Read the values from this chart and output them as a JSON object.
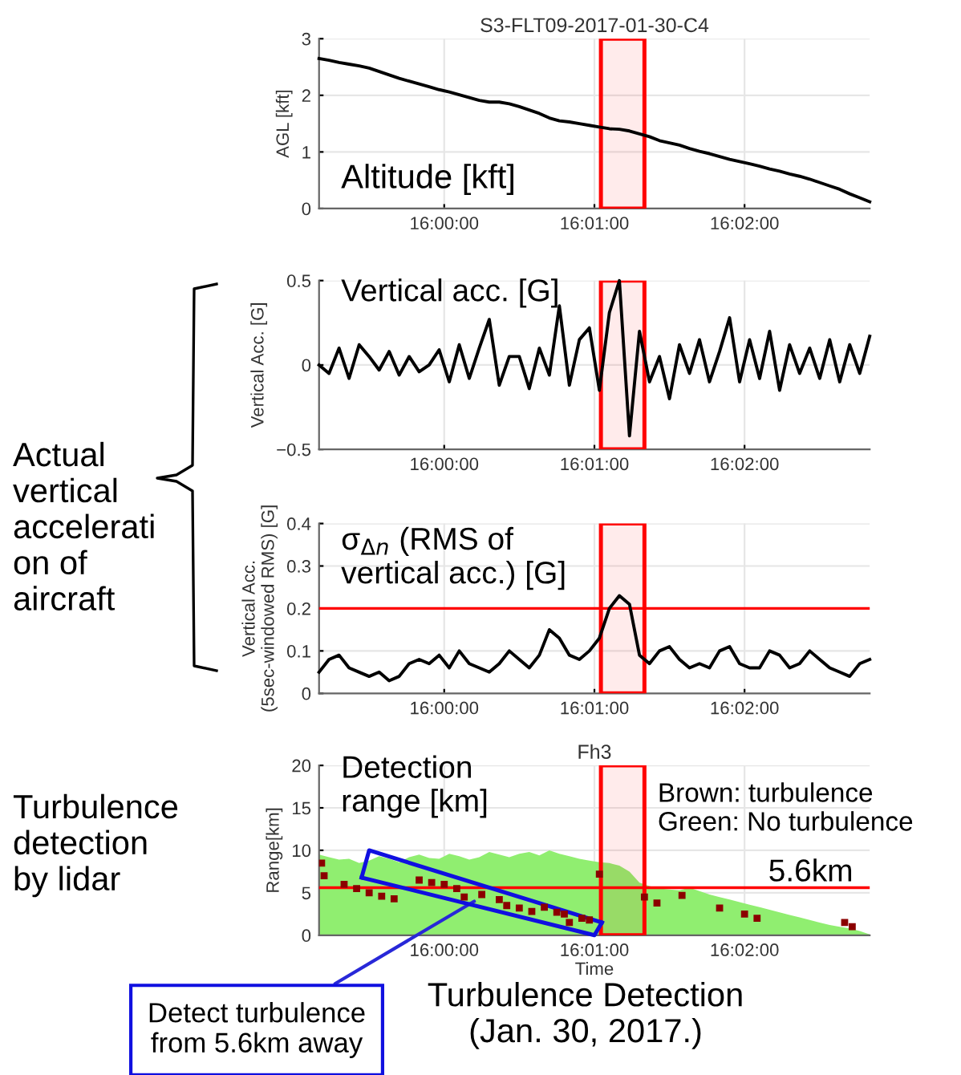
{
  "chart_data": [
    {
      "type": "line",
      "title": "S3-FLT09-2017-01-30-C4",
      "ylabel": "AGL [kft]",
      "annotations": [
        "Altitude [kft]"
      ],
      "x": [
        15.98611,
        15.98722,
        15.98833,
        15.98944,
        15.99056,
        15.99167,
        15.99278,
        15.99389,
        15.995,
        15.99611,
        15.99722,
        15.99833,
        15.99944,
        16.00056,
        16.00167,
        16.00278,
        16.00389,
        16.005,
        16.00611,
        16.00722,
        16.00833,
        16.00944,
        16.01056,
        16.01167,
        16.01278,
        16.01389,
        16.015,
        16.01611,
        16.01722,
        16.01833,
        16.01944,
        16.02056,
        16.02167,
        16.02278,
        16.02389,
        16.025,
        16.02611,
        16.02722,
        16.02833,
        16.02944,
        16.03056,
        16.03167,
        16.03278,
        16.03389,
        16.035,
        16.03611,
        16.03722,
        16.03833,
        16.03944,
        16.04056,
        16.04167,
        16.04278,
        16.04389,
        16.045,
        16.04611,
        16.04722
      ],
      "series": [
        {
          "color": "#000000",
          "values": [
            2.65,
            2.62,
            2.58,
            2.55,
            2.52,
            2.48,
            2.42,
            2.36,
            2.3,
            2.25,
            2.2,
            2.15,
            2.1,
            2.06,
            2.01,
            1.96,
            1.91,
            1.88,
            1.88,
            1.85,
            1.8,
            1.74,
            1.68,
            1.6,
            1.55,
            1.53,
            1.5,
            1.47,
            1.44,
            1.41,
            1.4,
            1.37,
            1.32,
            1.27,
            1.2,
            1.16,
            1.12,
            1.06,
            1.01,
            0.97,
            0.92,
            0.87,
            0.83,
            0.79,
            0.75,
            0.7,
            0.66,
            0.61,
            0.57,
            0.52,
            0.46,
            0.4,
            0.34,
            0.26,
            0.19,
            0.12
          ]
        }
      ],
      "xlim": [
        15.98611,
        16.04722
      ],
      "xticks": [
        {
          "value": 16,
          "label": "16:00:00"
        },
        {
          "value": 16.01667,
          "label": "16:01:00"
        },
        {
          "value": 16.03333,
          "label": "16:02:00"
        }
      ],
      "ylim": [
        0,
        3
      ],
      "yticks": [
        0,
        1,
        2,
        3
      ],
      "grid": true,
      "marker": "none",
      "line_style": "solid",
      "bands": [
        {
          "axis": "x",
          "from": 16.01739,
          "to": 16.02222,
          "color": "#ff0000"
        }
      ]
    },
    {
      "type": "line",
      "ylabel": "Vertical Acc. [G]",
      "annotations": [
        "Vertical acc. [G]"
      ],
      "x": [
        15.98611,
        15.98722,
        15.98833,
        15.98944,
        15.99056,
        15.99167,
        15.99278,
        15.99389,
        15.995,
        15.99611,
        15.99722,
        15.99833,
        15.99944,
        16.00056,
        16.00167,
        16.00278,
        16.00389,
        16.005,
        16.00611,
        16.00722,
        16.00833,
        16.00944,
        16.01056,
        16.01167,
        16.01278,
        16.01389,
        16.015,
        16.01611,
        16.01722,
        16.01833,
        16.01944,
        16.02056,
        16.02167,
        16.02278,
        16.02389,
        16.025,
        16.02611,
        16.02722,
        16.02833,
        16.02944,
        16.03056,
        16.03167,
        16.03278,
        16.03389,
        16.035,
        16.03611,
        16.03722,
        16.03833,
        16.03944,
        16.04056,
        16.04167,
        16.04278,
        16.04389,
        16.045,
        16.04611,
        16.04722
      ],
      "series": [
        {
          "color": "#000000",
          "values": [
            0.0,
            -0.05,
            0.1,
            -0.08,
            0.12,
            0.05,
            -0.03,
            0.08,
            -0.06,
            0.05,
            -0.04,
            0.0,
            0.09,
            -0.1,
            0.12,
            -0.08,
            0.1,
            0.27,
            -0.12,
            0.05,
            0.05,
            -0.14,
            0.1,
            -0.06,
            0.35,
            -0.12,
            0.15,
            0.22,
            -0.15,
            0.31,
            0.5,
            -0.42,
            0.2,
            -0.1,
            0.05,
            -0.2,
            0.12,
            -0.05,
            0.15,
            -0.1,
            0.08,
            0.28,
            -0.1,
            0.15,
            -0.08,
            0.2,
            -0.15,
            0.12,
            -0.05,
            0.1,
            -0.08,
            0.15,
            -0.1,
            0.12,
            -0.05,
            0.17
          ]
        }
      ],
      "xlim": [
        15.98611,
        16.04722
      ],
      "xticks": [
        {
          "value": 16,
          "label": "16:00:00"
        },
        {
          "value": 16.01667,
          "label": "16:01:00"
        },
        {
          "value": 16.03333,
          "label": "16:02:00"
        }
      ],
      "ylim": [
        -0.5,
        0.5
      ],
      "yticks": [
        {
          "value": -0.5,
          "label": "−0.5"
        },
        0,
        0.5
      ],
      "grid": true,
      "marker": "none",
      "line_style": "solid",
      "bands": [
        {
          "axis": "x",
          "from": 16.01739,
          "to": 16.02222,
          "color": "#ff0000"
        }
      ]
    },
    {
      "type": "line",
      "ylabel": "Vertical Acc.\n(5sec-windowed RMS) [G]",
      "annotations": [
        "σ$_{Δn}$ (RMS of\nvertical acc.) [G]",
        "Actual\nvertical\naccelerati\non of\naircraft"
      ],
      "x": [
        15.98611,
        15.98722,
        15.98833,
        15.98944,
        15.99056,
        15.99167,
        15.99278,
        15.99389,
        15.995,
        15.99611,
        15.99722,
        15.99833,
        15.99944,
        16.00056,
        16.00167,
        16.00278,
        16.00389,
        16.005,
        16.00611,
        16.00722,
        16.00833,
        16.00944,
        16.01056,
        16.01167,
        16.01278,
        16.01389,
        16.015,
        16.01611,
        16.01722,
        16.01833,
        16.01944,
        16.02056,
        16.02167,
        16.02278,
        16.02389,
        16.025,
        16.02611,
        16.02722,
        16.02833,
        16.02944,
        16.03056,
        16.03167,
        16.03278,
        16.03389,
        16.035,
        16.03611,
        16.03722,
        16.03833,
        16.03944,
        16.04056,
        16.04167,
        16.04278,
        16.04389,
        16.045,
        16.04611,
        16.04722
      ],
      "series": [
        {
          "color": "#000000",
          "values": [
            0.05,
            0.08,
            0.09,
            0.06,
            0.05,
            0.04,
            0.05,
            0.03,
            0.04,
            0.07,
            0.08,
            0.07,
            0.09,
            0.06,
            0.1,
            0.07,
            0.06,
            0.05,
            0.07,
            0.1,
            0.08,
            0.06,
            0.09,
            0.15,
            0.13,
            0.09,
            0.08,
            0.1,
            0.13,
            0.2,
            0.23,
            0.21,
            0.09,
            0.07,
            0.1,
            0.11,
            0.08,
            0.06,
            0.07,
            0.06,
            0.1,
            0.11,
            0.07,
            0.06,
            0.06,
            0.1,
            0.09,
            0.06,
            0.07,
            0.1,
            0.08,
            0.06,
            0.05,
            0.04,
            0.07,
            0.08
          ]
        }
      ],
      "xlim": [
        15.98611,
        16.04722
      ],
      "xticks": [
        {
          "value": 16,
          "label": "16:00:00"
        },
        {
          "value": 16.01667,
          "label": "16:01:00"
        },
        {
          "value": 16.03333,
          "label": "16:02:00"
        }
      ],
      "ylim": [
        0,
        0.4
      ],
      "yticks": [
        0,
        0.1,
        0.2,
        0.3,
        0.4
      ],
      "grid": true,
      "marker": "none",
      "line_style": "solid",
      "ref_lines": [
        {
          "axis": "y",
          "value": 0.2,
          "color": "#ff0000"
        }
      ],
      "bands": [
        {
          "axis": "x",
          "from": 16.01739,
          "to": 16.02222,
          "color": "#ff0000"
        }
      ]
    },
    {
      "type": "area",
      "title": "Fh3",
      "xlabel": "Time",
      "ylabel": "Range[km]",
      "annotations": [
        "Detection\nrange [km]",
        "Brown: turbulence\nGreen: No turbulence",
        "Turbulence\ndetection\nby lidar",
        {
          "text": "Detect turbulence\nfrom 5.6km away",
          "x": 16.00333,
          "y": 4
        },
        "Turbulence Detection\n(Jan. 30, 2017.)"
      ],
      "x": [
        15.98611,
        15.98722,
        15.98833,
        15.98944,
        15.99056,
        15.99167,
        15.99278,
        15.99389,
        15.995,
        15.99611,
        15.99722,
        15.99833,
        15.99944,
        16.00056,
        16.00167,
        16.00278,
        16.00389,
        16.005,
        16.00611,
        16.00722,
        16.00833,
        16.00944,
        16.01056,
        16.01167,
        16.01278,
        16.01389,
        16.015,
        16.01611,
        16.01722,
        16.01833,
        16.01944,
        16.02056,
        16.02167,
        16.02278,
        16.02389,
        16.025,
        16.02611,
        16.02722,
        16.02833,
        16.02944,
        16.03056,
        16.03167,
        16.03278,
        16.03389,
        16.035,
        16.03611,
        16.03722,
        16.03833,
        16.03944,
        16.04056,
        16.04167,
        16.04278,
        16.04389,
        16.045,
        16.04611,
        16.04722
      ],
      "series": [
        {
          "color": "#90ee70",
          "values": [
            9.5,
            9.2,
            8.9,
            9.0,
            8.5,
            8.8,
            9.3,
            9.0,
            8.6,
            9.2,
            9.5,
            9.1,
            9.0,
            9.6,
            9.3,
            8.9,
            9.2,
            9.8,
            9.5,
            9.2,
            9.6,
            9.8,
            9.4,
            10.0,
            9.6,
            9.3,
            9.0,
            8.8,
            8.6,
            8.5,
            8.2,
            7.5,
            6.2,
            5.8,
            5.5,
            5.4,
            5.3,
            5.6,
            5.2,
            4.8,
            4.5,
            4.2,
            3.9,
            3.6,
            3.3,
            3.0,
            2.7,
            2.4,
            2.1,
            1.8,
            1.5,
            1.2,
            1.0,
            0.8,
            0.5,
            0.1
          ]
        },
        {
          "type": "line",
          "color": "#1010e0",
          "x": [
            15.99083,
            15.99167,
            16.0175
          ],
          "values": [
            6.8,
            10,
            1.5
          ]
        },
        {
          "type": "line",
          "color": "#1010e0",
          "x": [
            15.99083,
            16.01667,
            16.0175
          ],
          "values": [
            6.8,
            0,
            1.5
          ]
        },
        {
          "type": "scatter",
          "marker": "square",
          "color": "#8b0000",
          "x": [
            15.98639,
            15.98667,
            15.98889,
            15.99028,
            15.99167,
            15.99306,
            15.99444,
            15.99722,
            15.99861,
            16.0,
            16.00139,
            16.00222,
            16.00417,
            16.00611,
            16.00694,
            16.00833,
            16.00972,
            16.01111,
            16.0125,
            16.01333,
            16.01389,
            16.01528,
            16.01611,
            16.01722,
            16.02222,
            16.02361,
            16.02639,
            16.03056,
            16.03333,
            16.03472,
            16.04444,
            16.04528
          ],
          "values": [
            8.5,
            7,
            6,
            5.5,
            5,
            4.6,
            4.3,
            6.5,
            6.2,
            6,
            5.5,
            4.5,
            4.8,
            4.2,
            3.5,
            3.2,
            2.8,
            3.3,
            2.7,
            2.5,
            1.5,
            2.0,
            1.8,
            7.2,
            4.5,
            3.8,
            4.7,
            3.2,
            2.5,
            2.0,
            1.5,
            1.0
          ]
        }
      ],
      "xlim": [
        15.98611,
        16.04722
      ],
      "xticks": [
        {
          "value": 16,
          "label": "16:00:00"
        },
        {
          "value": 16.01667,
          "label": "16:01:00"
        },
        {
          "value": 16.03333,
          "label": "16:02:00"
        }
      ],
      "ylim": [
        0,
        20
      ],
      "yticks": [
        0,
        5,
        10,
        15,
        20
      ],
      "grid": true,
      "ref_lines": [
        {
          "axis": "y",
          "value": 5.6,
          "label": "5.6km",
          "color": "#ff0000"
        }
      ],
      "bands": [
        {
          "axis": "x",
          "from": 16.01739,
          "to": 16.02222,
          "color": "#ff0000"
        }
      ]
    }
  ]
}
